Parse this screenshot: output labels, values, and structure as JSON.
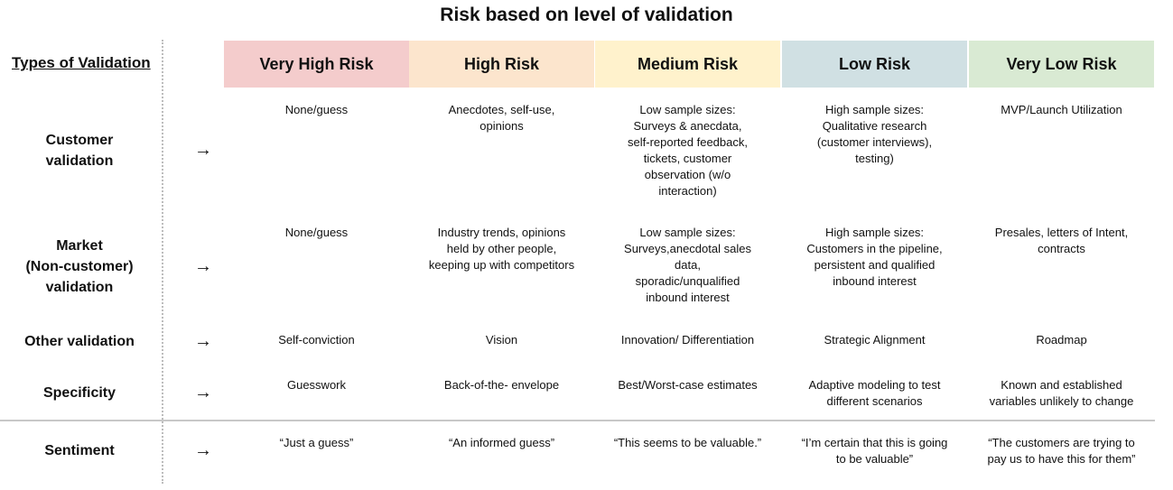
{
  "title": "Risk based on level of validation",
  "types_header": "Types of Validation",
  "arrow_glyph": "→",
  "levels": [
    {
      "label": "Very High Risk",
      "color": "#f4cccc"
    },
    {
      "label": "High Risk",
      "color": "#fce5cd"
    },
    {
      "label": "Medium Risk",
      "color": "#fff2cc"
    },
    {
      "label": "Low Risk",
      "color": "#d0e0e3"
    },
    {
      "label": "Very Low Risk",
      "color": "#d9ead3"
    }
  ],
  "rows": [
    {
      "label": "Customer\nvalidation",
      "cells": [
        "None/guess",
        "Anecdotes, self-use,\nopinions",
        "Low sample sizes:\nSurveys & anecdata,\nself-reported feedback,\ntickets, customer\nobservation (w/o\ninteraction)",
        "High sample sizes:\nQualitative research\n(customer interviews),\ntesting)",
        "MVP/Launch Utilization"
      ]
    },
    {
      "label": "Market\n(Non-customer)\nvalidation",
      "cells": [
        "None/guess",
        "Industry trends, opinions\nheld by other people,\nkeeping up with competitors",
        "Low sample sizes:\nSurveys,anecdotal sales\ndata,\nsporadic/unqualified\ninbound interest",
        "High sample sizes:\nCustomers in the pipeline,\npersistent and qualified\ninbound interest",
        "Presales, letters of Intent,\ncontracts"
      ]
    },
    {
      "label": "Other validation",
      "cells": [
        "Self-conviction",
        "Vision",
        "Innovation/ Differentiation",
        "Strategic Alignment",
        "Roadmap"
      ]
    },
    {
      "label": "Specificity",
      "cells": [
        "Guesswork",
        "Back-of-the- envelope",
        "Best/Worst-case estimates",
        "Adaptive modeling to test\ndifferent scenarios",
        "Known and established\nvariables unlikely to change"
      ]
    },
    {
      "label": "Sentiment",
      "cells": [
        "“Just a guess”",
        "“An informed guess”",
        "“This seems to be valuable.”",
        "“I’m certain that this is going\nto be valuable”",
        "“The customers are trying to\npay us to have this for them”"
      ]
    }
  ]
}
